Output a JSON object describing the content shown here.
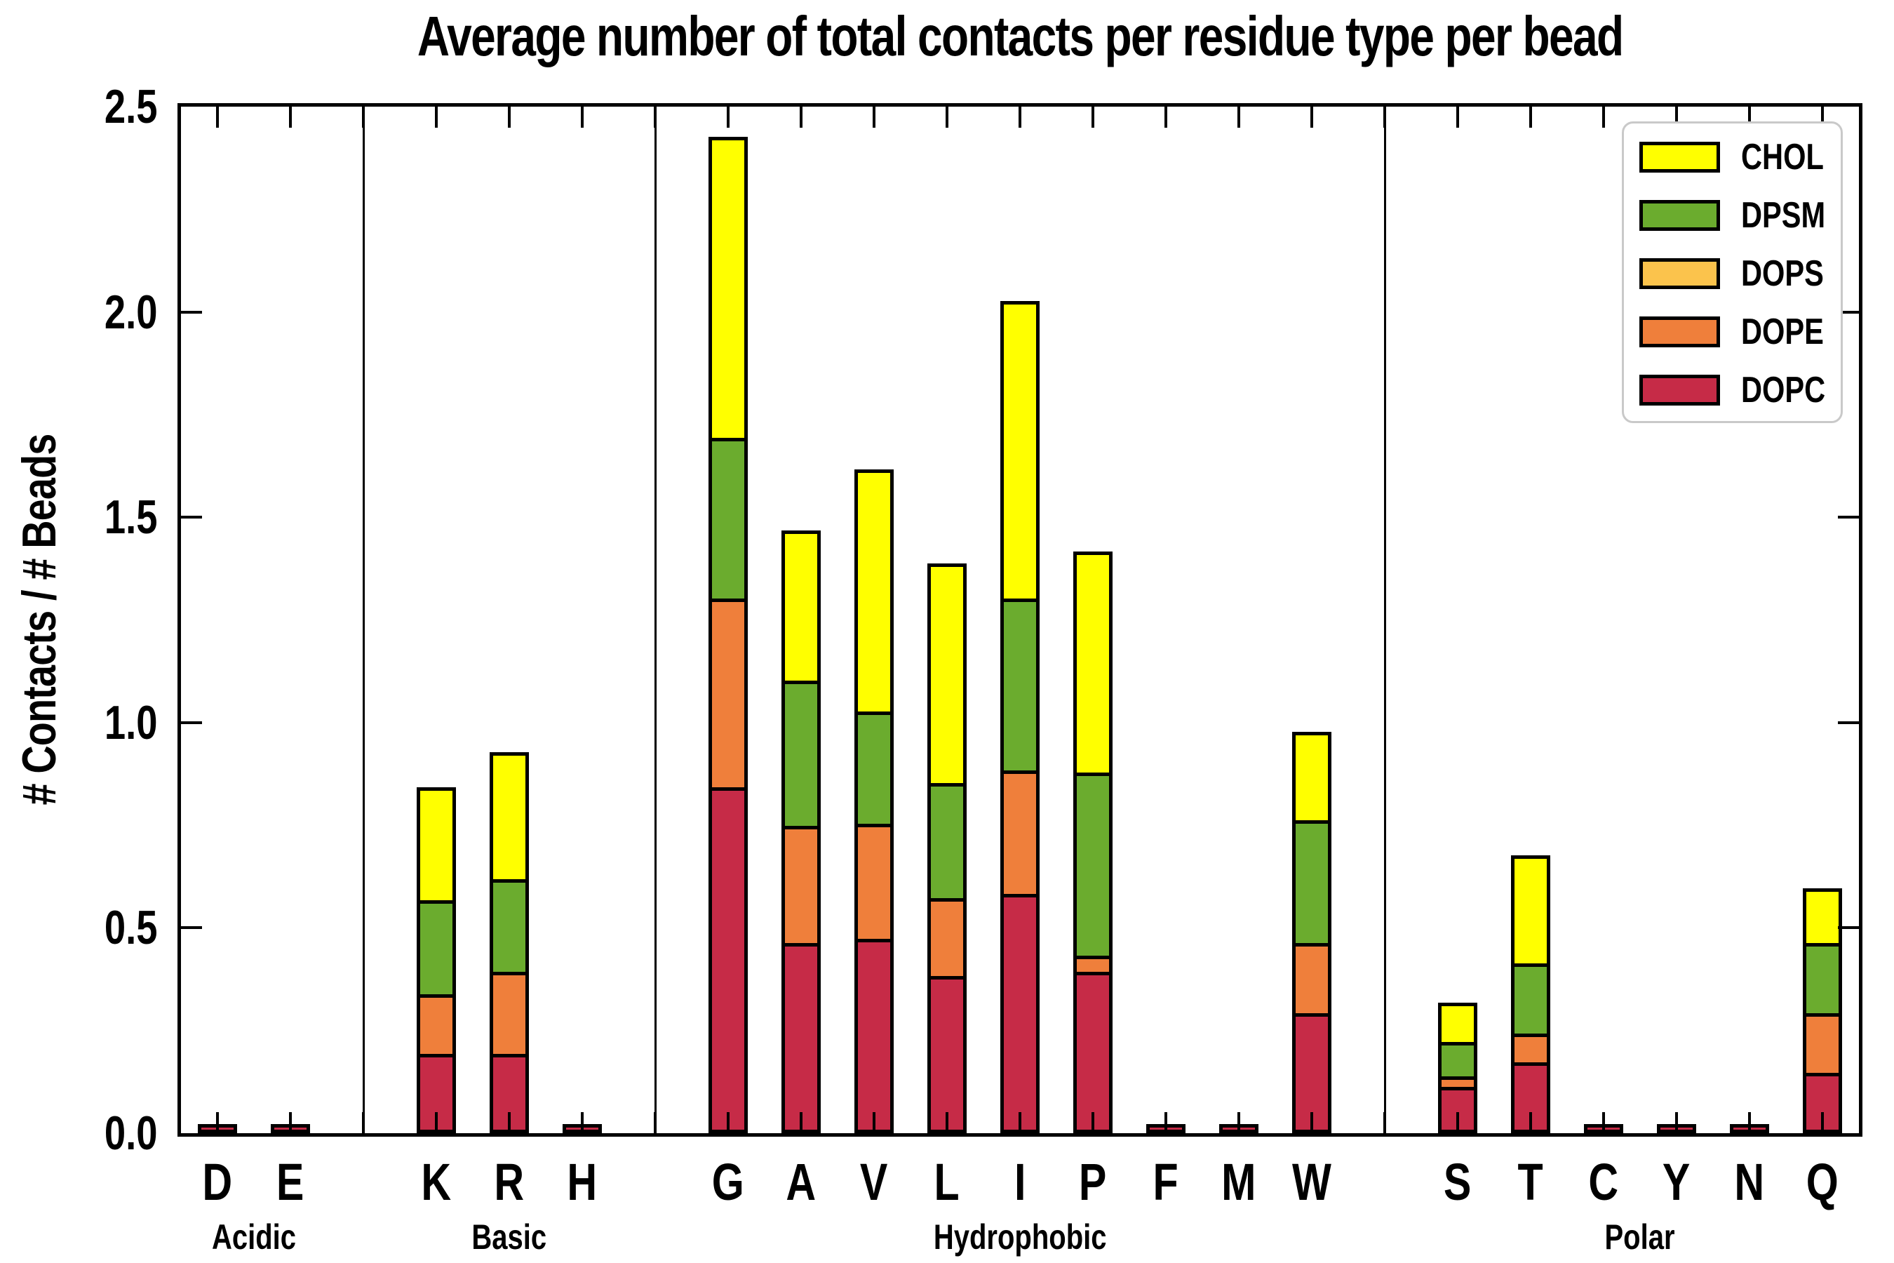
{
  "page": {
    "background": "#ffffff"
  },
  "chart_data": {
    "type": "stacked_bar",
    "title": "Average number of total contacts per residue type per bead",
    "ylabel": "# Contacts / # Beads",
    "xlabel": "",
    "ylim": [
      0,
      2.5
    ],
    "ytick_labels": [
      "0.0",
      "0.5",
      "1.0",
      "1.5",
      "2.0",
      "2.5"
    ],
    "grid": false,
    "legend_position": "upper right",
    "series_order_bottom_to_top": [
      "DOPC",
      "DOPE",
      "DOPS",
      "DPSM",
      "CHOL"
    ],
    "series_colors": {
      "DOPC": "#C62B47",
      "DOPE": "#EF7F3B",
      "DOPS": "#FBC34C",
      "DPSM": "#6BAC2E",
      "CHOL": "#FFFF00"
    },
    "legend_entries_top_to_bottom": [
      "CHOL",
      "DPSM",
      "DOPS",
      "DOPE",
      "DOPC"
    ],
    "axis_slots": 23,
    "separator_slots": [
      2,
      6,
      16
    ],
    "groups": [
      {
        "label": "Acidic",
        "start_slot": 0,
        "bars": [
          {
            "category": "D",
            "values": {
              "DOPC": 0.005,
              "DOPE": 0,
              "DOPS": 0,
              "DPSM": 0,
              "CHOL": 0
            }
          },
          {
            "category": "E",
            "values": {
              "DOPC": 0.005,
              "DOPE": 0,
              "DOPS": 0,
              "DPSM": 0,
              "CHOL": 0
            }
          }
        ]
      },
      {
        "label": "Basic",
        "start_slot": 3,
        "bars": [
          {
            "category": "K",
            "values": {
              "DOPC": 0.18,
              "DOPE": 0.145,
              "DOPS": 0,
              "DPSM": 0.23,
              "CHOL": 0.27
            }
          },
          {
            "category": "R",
            "values": {
              "DOPC": 0.18,
              "DOPE": 0.2,
              "DOPS": 0,
              "DPSM": 0.225,
              "CHOL": 0.305
            }
          },
          {
            "category": "H",
            "values": {
              "DOPC": 0.005,
              "DOPE": 0,
              "DOPS": 0,
              "DPSM": 0,
              "CHOL": 0
            }
          }
        ]
      },
      {
        "label": "Hydrophobic",
        "start_slot": 7,
        "bars": [
          {
            "category": "G",
            "values": {
              "DOPC": 0.83,
              "DOPE": 0.46,
              "DOPS": 0,
              "DPSM": 0.39,
              "CHOL": 0.73
            }
          },
          {
            "category": "A",
            "values": {
              "DOPC": 0.45,
              "DOPE": 0.285,
              "DOPS": 0,
              "DPSM": 0.355,
              "CHOL": 0.36
            }
          },
          {
            "category": "V",
            "values": {
              "DOPC": 0.46,
              "DOPE": 0.28,
              "DOPS": 0,
              "DPSM": 0.275,
              "CHOL": 0.585
            }
          },
          {
            "category": "L",
            "values": {
              "DOPC": 0.37,
              "DOPE": 0.19,
              "DOPS": 0,
              "DPSM": 0.28,
              "CHOL": 0.53
            }
          },
          {
            "category": "I",
            "values": {
              "DOPC": 0.57,
              "DOPE": 0.3,
              "DOPS": 0,
              "DPSM": 0.42,
              "CHOL": 0.72
            }
          },
          {
            "category": "P",
            "values": {
              "DOPC": 0.38,
              "DOPE": 0.04,
              "DOPS": 0,
              "DPSM": 0.445,
              "CHOL": 0.535
            }
          },
          {
            "category": "F",
            "values": {
              "DOPC": 0.005,
              "DOPE": 0,
              "DOPS": 0,
              "DPSM": 0,
              "CHOL": 0
            }
          },
          {
            "category": "M",
            "values": {
              "DOPC": 0.005,
              "DOPE": 0,
              "DOPS": 0,
              "DPSM": 0,
              "CHOL": 0
            }
          },
          {
            "category": "W",
            "values": {
              "DOPC": 0.28,
              "DOPE": 0.17,
              "DOPS": 0,
              "DPSM": 0.3,
              "CHOL": 0.21
            }
          }
        ]
      },
      {
        "label": "Polar",
        "start_slot": 17,
        "bars": [
          {
            "category": "S",
            "values": {
              "DOPC": 0.1,
              "DOPE": 0.025,
              "DOPS": 0,
              "DPSM": 0.085,
              "CHOL": 0.09
            }
          },
          {
            "category": "T",
            "values": {
              "DOPC": 0.16,
              "DOPE": 0.07,
              "DOPS": 0,
              "DPSM": 0.17,
              "CHOL": 0.26
            }
          },
          {
            "category": "C",
            "values": {
              "DOPC": 0.005,
              "DOPE": 0,
              "DOPS": 0,
              "DPSM": 0,
              "CHOL": 0
            }
          },
          {
            "category": "Y",
            "values": {
              "DOPC": 0.005,
              "DOPE": 0,
              "DOPS": 0,
              "DPSM": 0,
              "CHOL": 0
            }
          },
          {
            "category": "N",
            "values": {
              "DOPC": 0.005,
              "DOPE": 0,
              "DOPS": 0,
              "DPSM": 0,
              "CHOL": 0
            }
          },
          {
            "category": "Q",
            "values": {
              "DOPC": 0.135,
              "DOPE": 0.145,
              "DOPS": 0,
              "DPSM": 0.17,
              "CHOL": 0.13
            }
          }
        ]
      }
    ]
  }
}
